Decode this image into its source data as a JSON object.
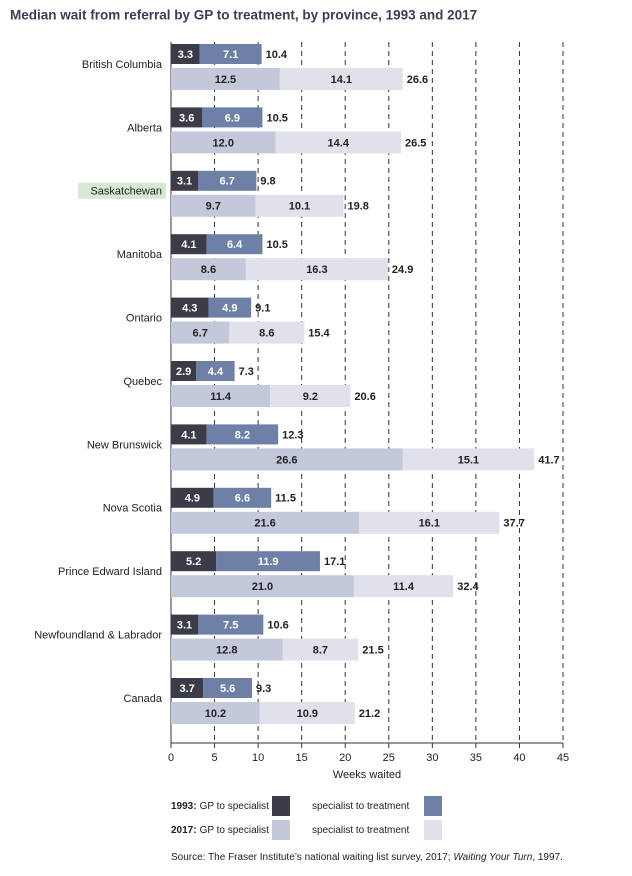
{
  "chart_data": {
    "type": "bar",
    "title": "Median wait from referral by GP to treatment, by province, 1993 and 2017",
    "categories": [
      "British Columbia",
      "Alberta",
      "Saskatchewan",
      "Manitoba",
      "Ontario",
      "Quebec",
      "New Brunswick",
      "Nova Scotia",
      "Prince Edward Island",
      "Newfoundland & Labrador",
      "Canada"
    ],
    "highlight_index": 2,
    "highlight_color": "#d6e9d2",
    "groups": [
      {
        "name": "1993:",
        "series": [
          {
            "name": "GP to specialist",
            "color": "#3b3c48",
            "text_color": "#ffffff",
            "values": [
              3.3,
              3.6,
              3.1,
              4.1,
              4.3,
              2.9,
              4.1,
              4.9,
              5.2,
              3.1,
              3.7
            ]
          },
          {
            "name": "specialist to treatment",
            "color": "#6e80a6",
            "text_color": "#ffffff",
            "values": [
              7.1,
              6.9,
              6.7,
              6.4,
              4.9,
              4.4,
              8.2,
              6.6,
              11.9,
              7.5,
              5.6
            ]
          }
        ],
        "totals": [
          10.4,
          10.5,
          9.8,
          10.5,
          9.1,
          7.3,
          12.3,
          11.5,
          17.1,
          10.6,
          9.3
        ]
      },
      {
        "name": "2017:",
        "series": [
          {
            "name": "GP to specialist",
            "color": "#c4c8db",
            "text_color": "#222222",
            "values": [
              12.5,
              12.0,
              9.7,
              8.6,
              6.7,
              11.4,
              26.6,
              21.6,
              21.0,
              12.8,
              10.2
            ],
            "value_labels": [
              "12.5",
              "12.0",
              "9.7",
              "8.6",
              "6.7",
              "11.4",
              "26.6",
              "21.6",
              "21.0",
              "12.8",
              "10.2"
            ]
          },
          {
            "name": "specialist to treatment",
            "color": "#e0e1eb",
            "text_color": "#222222",
            "values": [
              14.1,
              14.4,
              10.1,
              16.3,
              8.6,
              9.2,
              15.1,
              16.1,
              11.4,
              8.7,
              10.9
            ]
          }
        ],
        "totals": [
          26.6,
          26.5,
          19.8,
          24.9,
          15.4,
          20.6,
          41.7,
          37.7,
          32.4,
          21.5,
          21.2
        ]
      }
    ],
    "xlabel": "Weeks waited",
    "xlim": [
      0,
      45
    ],
    "xticks": [
      0,
      5,
      10,
      15,
      20,
      25,
      30,
      35,
      40,
      45
    ],
    "grid": true,
    "source": {
      "prefix": "Source: The Fraser Institute’s national waiting list survey, 2017; ",
      "italic": "Waiting Your Turn",
      "suffix": ", 1997."
    }
  }
}
